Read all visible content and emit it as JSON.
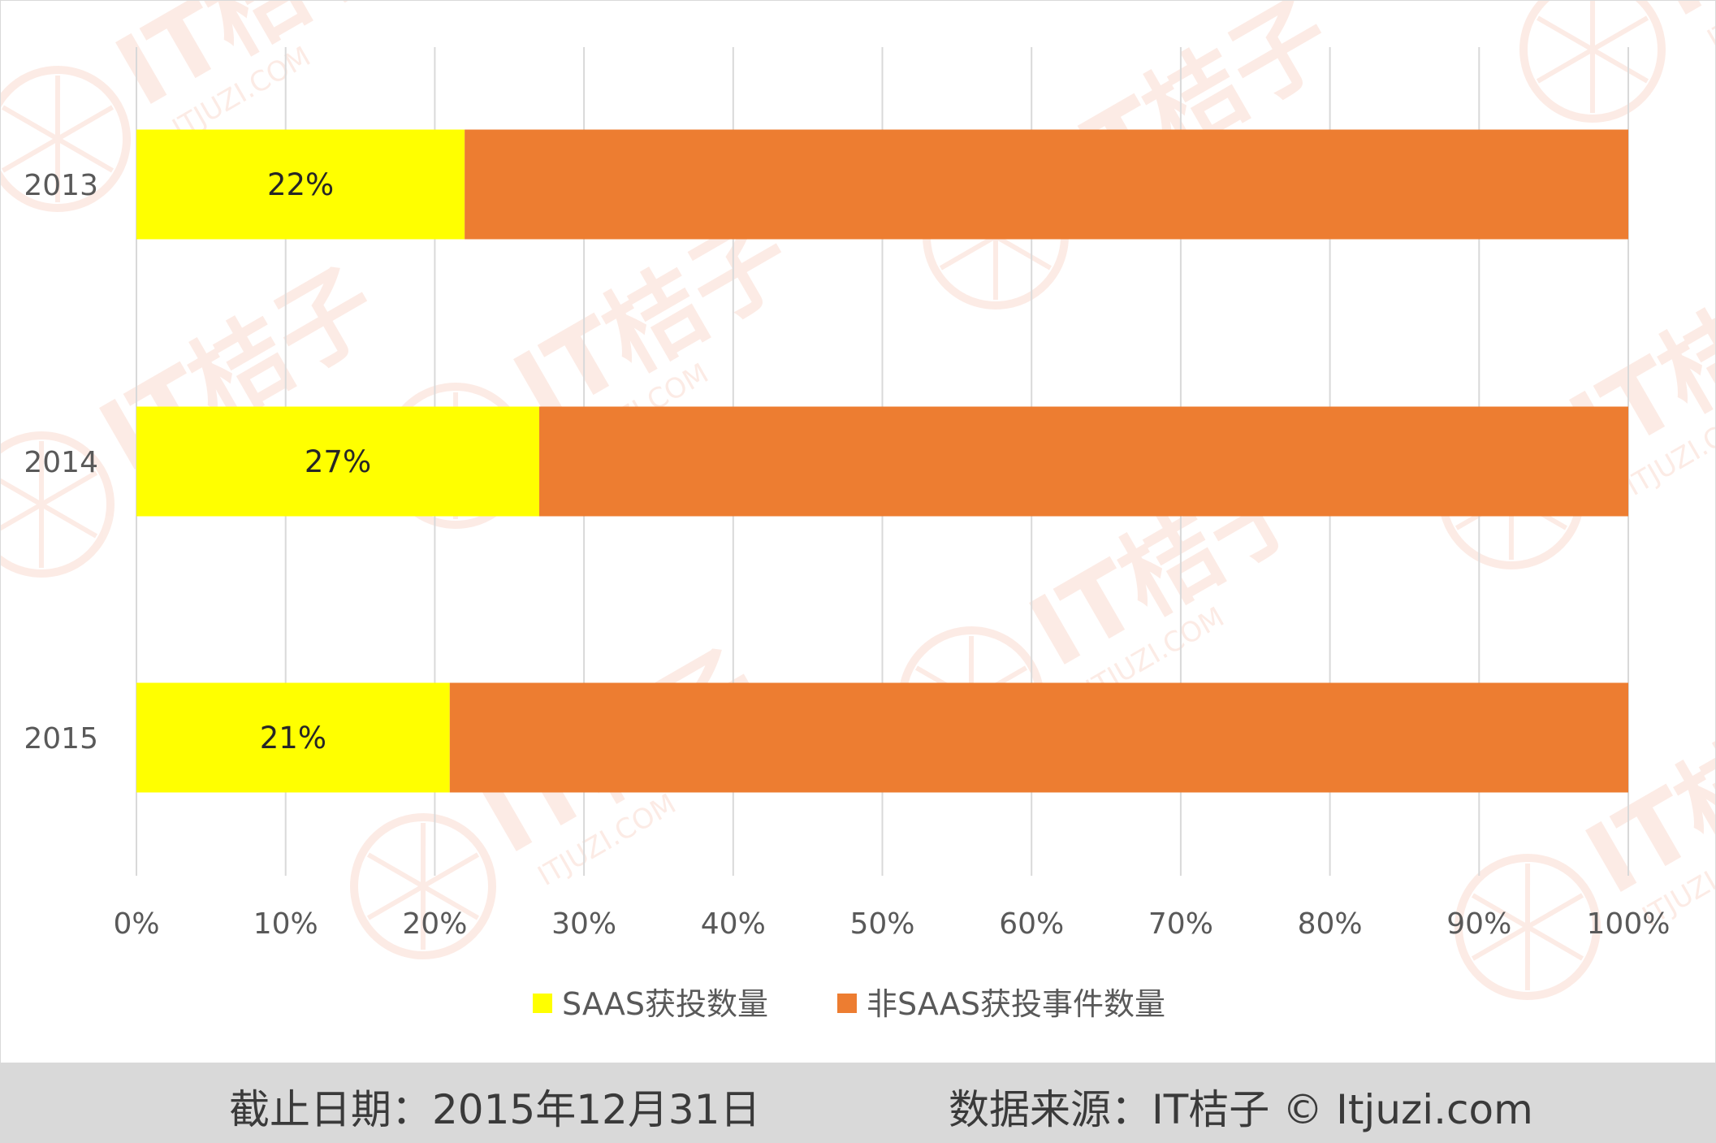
{
  "chart_data": {
    "type": "bar",
    "orientation": "horizontal",
    "stacked": "percent",
    "categories": [
      "2013",
      "2014",
      "2015"
    ],
    "series": [
      {
        "name": "SAAS获投数量",
        "color": "#ffff00",
        "values": [
          22,
          27,
          21
        ],
        "labels": [
          "22%",
          "27%",
          "21%"
        ]
      },
      {
        "name": "非SAAS获投事件数量",
        "color": "#ed7d31",
        "values": [
          78,
          73,
          79
        ]
      }
    ],
    "xlim": [
      0,
      100
    ],
    "xticks": [
      "0%",
      "10%",
      "20%",
      "30%",
      "40%",
      "50%",
      "60%",
      "70%",
      "80%",
      "90%",
      "100%"
    ],
    "grid": "vertical",
    "legend": "bottom",
    "title": "",
    "xlabel": "",
    "ylabel": ""
  },
  "footer": {
    "cutoff": "截止日期：2015年12月31日",
    "source": "数据来源：IT桔子 © Itjuzi.com"
  },
  "watermark": {
    "text": "IT桔子",
    "subtext": "ITJUZI.COM",
    "color": "#f6b9a4"
  }
}
